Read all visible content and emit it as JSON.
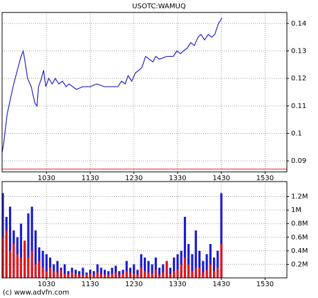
{
  "chart_data": [
    {
      "type": "line",
      "title": "USOTC:WAMUQ",
      "x": [
        569,
        571,
        576,
        580,
        585,
        590,
        595,
        598,
        600,
        604,
        609,
        614,
        617,
        619,
        623,
        626,
        629,
        633,
        638,
        642,
        647,
        652,
        657,
        661,
        671,
        680,
        690,
        699,
        709,
        719,
        728,
        733,
        738,
        742,
        747,
        752,
        757,
        761,
        766,
        771,
        776,
        780,
        785,
        795,
        804,
        809,
        814,
        818,
        823,
        828,
        833,
        838,
        842,
        847,
        852,
        857,
        861,
        866,
        871
      ],
      "series": [
        {
          "color": "#2323c8",
          "values": [
            0.093,
            0.096,
            0.107,
            0.112,
            0.118,
            0.123,
            0.128,
            0.13,
            0.127,
            0.12,
            0.117,
            0.111,
            0.11,
            0.117,
            0.12,
            0.123,
            0.117,
            0.12,
            0.118,
            0.12,
            0.118,
            0.119,
            0.117,
            0.118,
            0.116,
            0.117,
            0.117,
            0.118,
            0.117,
            0.117,
            0.117,
            0.119,
            0.118,
            0.121,
            0.119,
            0.122,
            0.123,
            0.124,
            0.128,
            0.127,
            0.126,
            0.128,
            0.127,
            0.128,
            0.128,
            0.13,
            0.129,
            0.13,
            0.131,
            0.133,
            0.132,
            0.135,
            0.136,
            0.134,
            0.136,
            0.135,
            0.136,
            0.14,
            0.142
          ]
        }
      ],
      "hline": 0.087,
      "hline_color": "#d42020",
      "xlim": [
        569,
        960
      ],
      "ylim": [
        0.086,
        0.144
      ],
      "xticks": [
        {
          "value": 630,
          "label": "1030"
        },
        {
          "value": 690,
          "label": "1130"
        },
        {
          "value": 750,
          "label": "1230"
        },
        {
          "value": 810,
          "label": "1330"
        },
        {
          "value": 870,
          "label": "1430"
        },
        {
          "value": 930,
          "label": "1530"
        }
      ],
      "yticks": [
        0.09,
        0.1,
        0.11,
        0.12,
        0.13,
        0.14
      ],
      "grid": true
    },
    {
      "type": "bar",
      "x": [
        570,
        575,
        580,
        585,
        590,
        595,
        600,
        605,
        610,
        615,
        620,
        625,
        630,
        635,
        640,
        645,
        650,
        655,
        660,
        665,
        670,
        675,
        680,
        685,
        690,
        695,
        700,
        705,
        710,
        715,
        720,
        725,
        730,
        735,
        740,
        745,
        750,
        755,
        760,
        765,
        770,
        775,
        780,
        785,
        790,
        795,
        800,
        805,
        810,
        815,
        820,
        825,
        830,
        835,
        840,
        845,
        850,
        855,
        860,
        865,
        870
      ],
      "series": [
        {
          "color": "#1c1cd0",
          "values": [
            1250000,
            900000,
            1050000,
            700000,
            600000,
            800000,
            500000,
            950000,
            1050000,
            700000,
            450000,
            400000,
            350000,
            300000,
            200000,
            250000,
            150000,
            200000,
            100000,
            150000,
            120000,
            100000,
            150000,
            80000,
            120000,
            100000,
            200000,
            150000,
            120000,
            100000,
            150000,
            180000,
            100000,
            120000,
            250000,
            150000,
            200000,
            120000,
            350000,
            300000,
            250000,
            200000,
            300000,
            150000,
            200000,
            250000,
            150000,
            300000,
            350000,
            400000,
            900000,
            500000,
            350000,
            700000,
            400000,
            250000,
            350000,
            500000,
            300000,
            400000,
            1250000
          ]
        },
        {
          "color": "#e01818",
          "values": [
            600000,
            700000,
            400000,
            500000,
            350000,
            300000,
            550000,
            300000,
            400000,
            200000,
            250000,
            150000,
            100000,
            150000,
            100000,
            80000,
            120000,
            60000,
            50000,
            80000,
            60000,
            50000,
            40000,
            50000,
            60000,
            40000,
            80000,
            60000,
            50000,
            40000,
            60000,
            80000,
            50000,
            60000,
            100000,
            80000,
            60000,
            50000,
            150000,
            100000,
            80000,
            60000,
            120000,
            50000,
            80000,
            250000,
            60000,
            100000,
            120000,
            200000,
            300000,
            200000,
            100000,
            150000,
            150000,
            80000,
            120000,
            200000,
            100000,
            150000,
            500000
          ]
        }
      ],
      "xlim": [
        569,
        960
      ],
      "ylim": [
        0,
        1420000
      ],
      "xticks": [
        {
          "value": 630,
          "label": "1030"
        },
        {
          "value": 690,
          "label": "1130"
        },
        {
          "value": 750,
          "label": "1230"
        },
        {
          "value": 810,
          "label": "1330"
        },
        {
          "value": 870,
          "label": "1430"
        },
        {
          "value": 930,
          "label": "1530"
        }
      ],
      "yticks": [
        {
          "value": 200000,
          "label": "0.2M"
        },
        {
          "value": 400000,
          "label": "0.4M"
        },
        {
          "value": 600000,
          "label": "0.6M"
        },
        {
          "value": 800000,
          "label": "0.8M"
        },
        {
          "value": 1000000,
          "label": "1M"
        },
        {
          "value": 1200000,
          "label": "1.2M"
        }
      ],
      "grid": true
    }
  ],
  "footer": "(c) www.advfn.com"
}
